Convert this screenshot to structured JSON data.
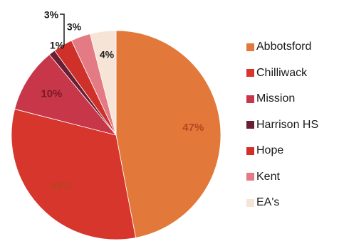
{
  "chart_data": {
    "type": "pie",
    "title": "",
    "slices": [
      {
        "label": "Abbotsford",
        "value": 47,
        "value_label": "47%",
        "color": "#e2793a",
        "label_color": "#b8441f"
      },
      {
        "label": "Chilliwack",
        "value": 32,
        "value_label": "32%",
        "color": "#d6362c",
        "label_color": "#b8441f"
      },
      {
        "label": "Mission",
        "value": 10,
        "value_label": "10%",
        "color": "#c8364a",
        "label_color": "#7a1b22"
      },
      {
        "label": "Harrison HS",
        "value": 1,
        "value_label": "1%",
        "color": "#6a1e33",
        "label_color": "#1a1a1a"
      },
      {
        "label": "Hope",
        "value": 3,
        "value_label": "3%",
        "color": "#d0302a",
        "label_color": "#1a1a1a"
      },
      {
        "label": "Kent",
        "value": 3,
        "value_label": "3%",
        "color": "#e47a84",
        "label_color": "#1a1a1a"
      },
      {
        "label": "EA's",
        "value": 4,
        "value_label": "4%",
        "color": "#f6e4d6",
        "label_color": "#1a1a1a"
      }
    ],
    "legend_position": "right"
  }
}
